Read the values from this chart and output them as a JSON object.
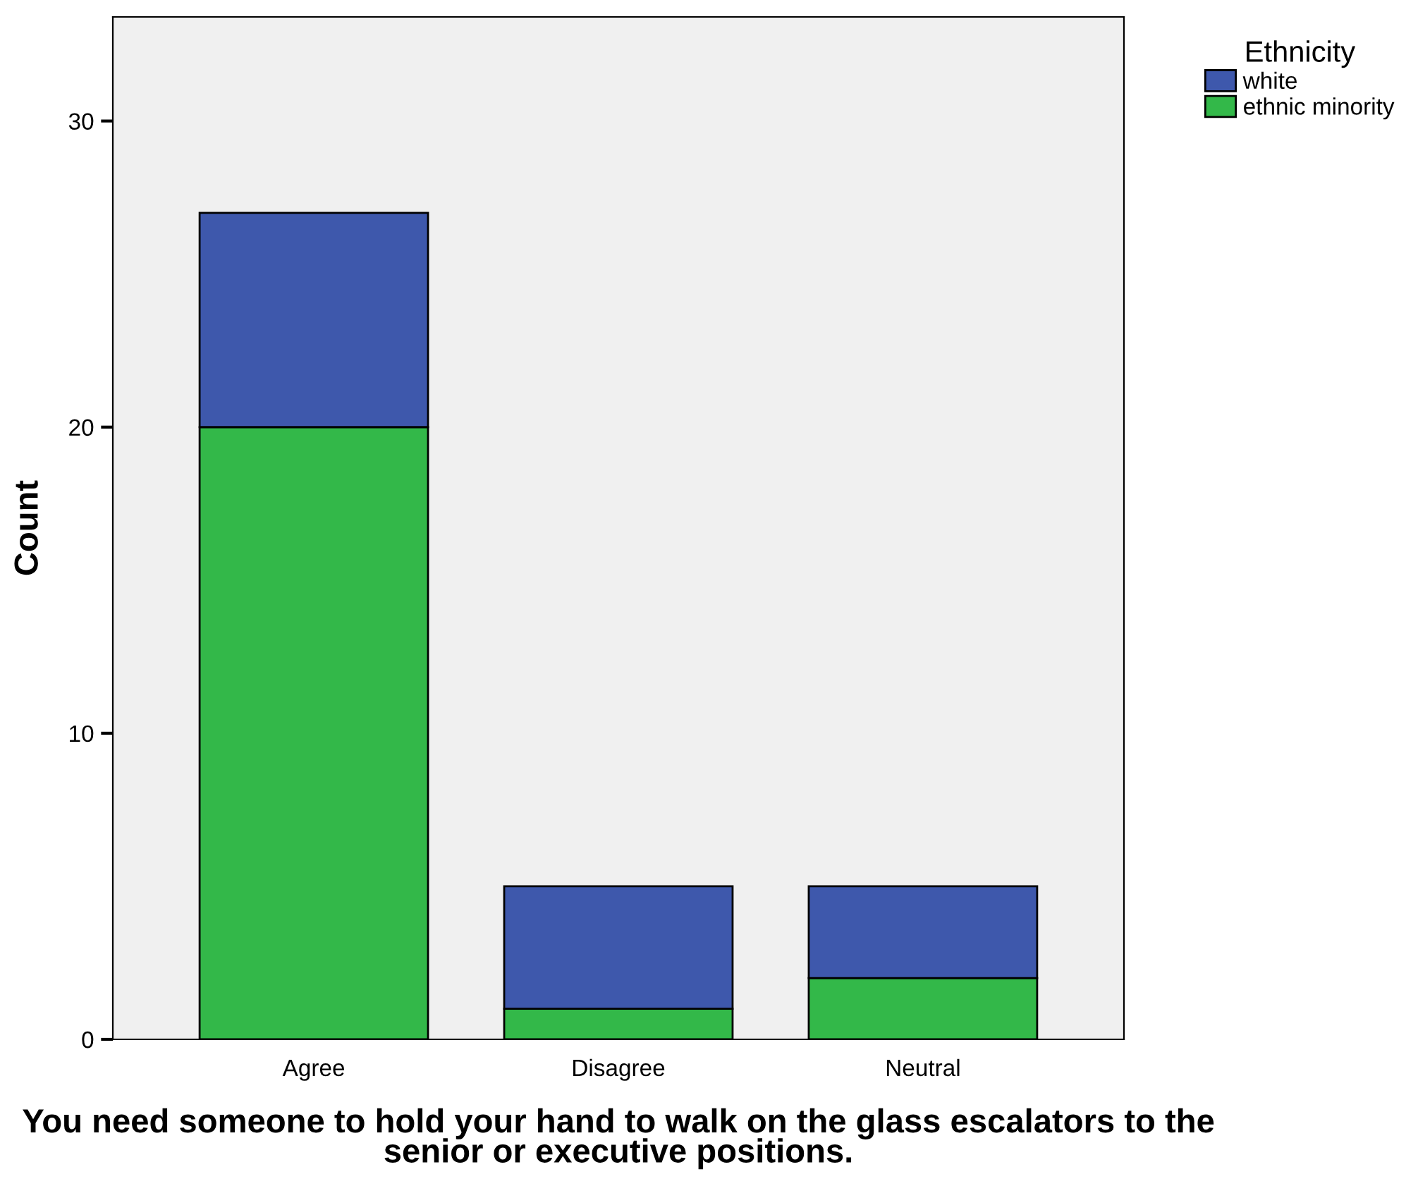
{
  "chart_data": {
    "type": "bar",
    "stacked": true,
    "xlabel": "You need someone to hold your hand to walk on the glass escalators to the senior or executive positions.",
    "ylabel": "Count",
    "legend_title": "Ethnicity",
    "categories": [
      "Agree",
      "Disagree",
      "Neutral"
    ],
    "series": [
      {
        "name": "ethnic minority",
        "color": "#33b849",
        "values": [
          20,
          1,
          2
        ]
      },
      {
        "name": "white",
        "color": "#3e58ac",
        "values": [
          7,
          4,
          3
        ]
      }
    ],
    "ylim": [
      0,
      33.4
    ],
    "yticks": [
      0,
      10,
      20,
      30
    ],
    "grid": false,
    "legend": "top right"
  }
}
